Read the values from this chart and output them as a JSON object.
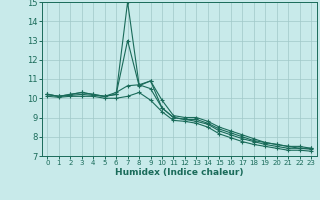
{
  "xlabel": "Humidex (Indice chaleur)",
  "ylabel": "",
  "xlim": [
    -0.5,
    23.5
  ],
  "ylim": [
    7,
    15
  ],
  "yticks": [
    7,
    8,
    9,
    10,
    11,
    12,
    13,
    14,
    15
  ],
  "xticks": [
    0,
    1,
    2,
    3,
    4,
    5,
    6,
    7,
    8,
    9,
    10,
    11,
    12,
    13,
    14,
    15,
    16,
    17,
    18,
    19,
    20,
    21,
    22,
    23
  ],
  "bg_color": "#c8eaea",
  "grid_color": "#a0c8c8",
  "line_color": "#1a6b5a",
  "lines": [
    {
      "x": [
        0,
        1,
        2,
        3,
        4,
        5,
        6,
        7,
        8,
        9,
        10,
        11,
        12,
        13,
        14,
        15,
        16,
        17,
        18,
        19,
        20,
        21,
        22,
        23
      ],
      "y": [
        10.2,
        10.1,
        10.2,
        10.3,
        10.2,
        10.1,
        10.2,
        15.0,
        10.7,
        10.9,
        9.9,
        9.1,
        9.0,
        9.0,
        8.8,
        8.5,
        8.3,
        8.1,
        7.9,
        7.7,
        7.6,
        7.5,
        7.5,
        7.4
      ]
    },
    {
      "x": [
        0,
        1,
        2,
        3,
        4,
        5,
        6,
        7,
        8,
        9,
        10,
        11,
        12,
        13,
        14,
        15,
        16,
        17,
        18,
        19,
        20,
        21,
        22,
        23
      ],
      "y": [
        10.2,
        10.1,
        10.2,
        10.3,
        10.2,
        10.1,
        10.2,
        13.0,
        10.65,
        10.9,
        9.5,
        9.0,
        8.9,
        8.9,
        8.7,
        8.4,
        8.2,
        8.0,
        7.8,
        7.7,
        7.6,
        7.5,
        7.4,
        7.4
      ]
    },
    {
      "x": [
        0,
        1,
        2,
        3,
        4,
        5,
        6,
        7,
        8,
        9,
        10,
        11,
        12,
        13,
        14,
        15,
        16,
        17,
        18,
        19,
        20,
        21,
        22,
        23
      ],
      "y": [
        10.2,
        10.1,
        10.15,
        10.2,
        10.15,
        10.1,
        10.3,
        10.65,
        10.7,
        10.5,
        9.5,
        9.0,
        8.9,
        8.8,
        8.65,
        8.3,
        8.1,
        7.9,
        7.75,
        7.6,
        7.5,
        7.4,
        7.4,
        7.35
      ]
    },
    {
      "x": [
        0,
        1,
        2,
        3,
        4,
        5,
        6,
        7,
        8,
        9,
        10,
        11,
        12,
        13,
        14,
        15,
        16,
        17,
        18,
        19,
        20,
        21,
        22,
        23
      ],
      "y": [
        10.1,
        10.05,
        10.1,
        10.1,
        10.1,
        10.0,
        10.0,
        10.1,
        10.3,
        9.9,
        9.3,
        8.85,
        8.8,
        8.7,
        8.5,
        8.15,
        7.95,
        7.75,
        7.6,
        7.5,
        7.4,
        7.3,
        7.3,
        7.25
      ]
    }
  ]
}
